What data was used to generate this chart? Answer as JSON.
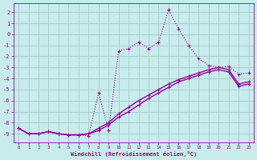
{
  "background_color": "#c8ecec",
  "grid_color": "#aacccc",
  "line_color": "#990099",
  "xlabel": "Windchill (Refroidissement éolien,°C)",
  "xlim": [
    -0.5,
    23.5
  ],
  "ylim": [
    -9.8,
    2.8
  ],
  "xticks": [
    0,
    1,
    2,
    3,
    4,
    5,
    6,
    7,
    8,
    9,
    10,
    11,
    12,
    13,
    14,
    15,
    16,
    17,
    18,
    19,
    20,
    21,
    22,
    23
  ],
  "yticks": [
    2,
    1,
    0,
    -1,
    -2,
    -3,
    -4,
    -5,
    -6,
    -7,
    -8,
    -9
  ],
  "series1_x": [
    0,
    1,
    2,
    3,
    4,
    5,
    6,
    7,
    8,
    9,
    10,
    11,
    12,
    13,
    14,
    15,
    16,
    17,
    18,
    19,
    20,
    21,
    22,
    23
  ],
  "series1_y": [
    -8.5,
    -9.0,
    -9.0,
    -8.8,
    -9.0,
    -9.1,
    -9.1,
    -9.2,
    -5.3,
    -8.7,
    -1.5,
    -1.3,
    -0.7,
    -1.3,
    -0.7,
    2.2,
    0.5,
    -1.0,
    -2.2,
    -2.8,
    -3.0,
    -2.9,
    -3.6,
    -3.5
  ],
  "series2_x": [
    0,
    1,
    2,
    3,
    4,
    5,
    6,
    7,
    8,
    9,
    10,
    11,
    12,
    13,
    14,
    15,
    16,
    17,
    18,
    19,
    20,
    21,
    22,
    23
  ],
  "series2_y": [
    -8.5,
    -9.0,
    -9.0,
    -8.8,
    -9.0,
    -9.1,
    -9.1,
    -9.0,
    -8.5,
    -8.0,
    -7.2,
    -6.6,
    -6.0,
    -5.5,
    -5.0,
    -4.5,
    -4.1,
    -3.8,
    -3.5,
    -3.2,
    -3.0,
    -3.2,
    -4.5,
    -4.3
  ],
  "series3_x": [
    0,
    1,
    2,
    3,
    4,
    5,
    6,
    7,
    8,
    9,
    10,
    11,
    12,
    13,
    14,
    15,
    16,
    17,
    18,
    19,
    20,
    21,
    22,
    23
  ],
  "series3_y": [
    -8.5,
    -9.0,
    -9.0,
    -8.8,
    -9.0,
    -9.1,
    -9.1,
    -9.0,
    -8.7,
    -8.2,
    -7.5,
    -7.0,
    -6.4,
    -5.8,
    -5.3,
    -4.8,
    -4.3,
    -4.0,
    -3.7,
    -3.4,
    -3.2,
    -3.4,
    -4.7,
    -4.5
  ]
}
